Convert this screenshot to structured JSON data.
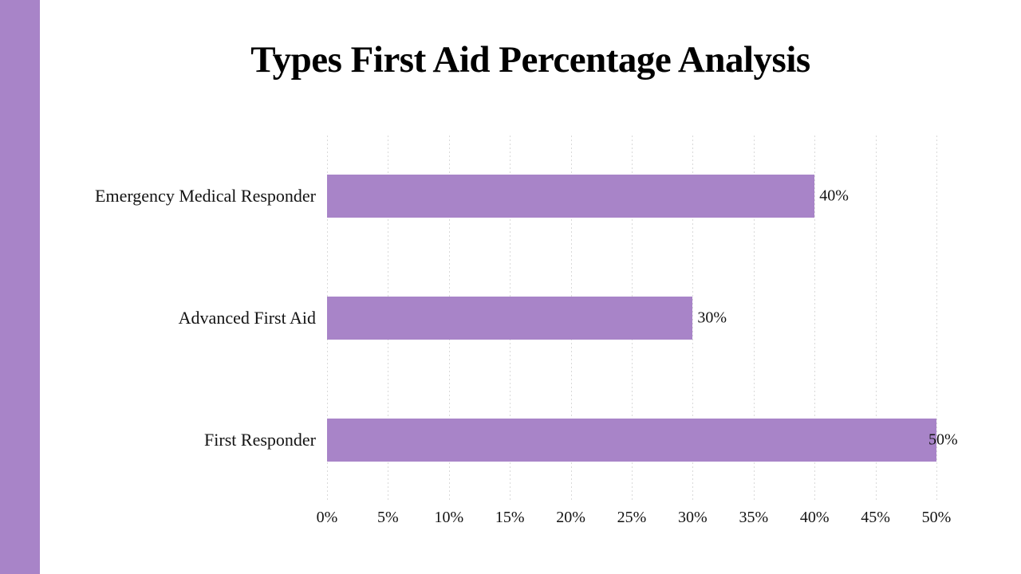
{
  "page": {
    "background": "#ffffff",
    "accent_stripe_color": "#a884c8"
  },
  "chart_data": {
    "type": "bar",
    "orientation": "horizontal",
    "title": "Types First Aid Percentage Analysis",
    "categories": [
      "Emergency Medical Responder",
      "Advanced First Aid",
      "First Responder"
    ],
    "values": [
      40,
      30,
      50
    ],
    "value_labels": [
      "40%",
      "30%",
      "50%"
    ],
    "xlabel": "",
    "ylabel": "",
    "xlim": [
      0,
      50
    ],
    "x_tick_values": [
      0,
      5,
      10,
      15,
      20,
      25,
      30,
      35,
      40,
      45,
      50
    ],
    "x_tick_labels": [
      "0%",
      "5%",
      "10%",
      "15%",
      "20%",
      "25%",
      "30%",
      "35%",
      "40%",
      "45%",
      "50%"
    ],
    "grid": "vertical",
    "gridline_style": "dashed",
    "gridline_color": "#d9d9d9",
    "bar_color": "#a884c8",
    "legend_position": "none"
  }
}
